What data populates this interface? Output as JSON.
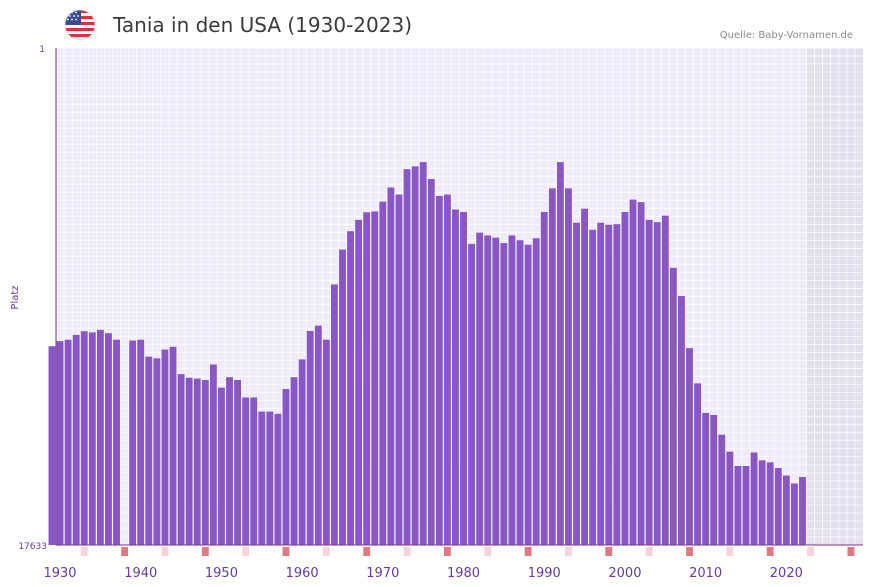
{
  "header": {
    "title": "Tania in den USA (1930-2023)",
    "source": "Quelle: Baby-Vornamen.de"
  },
  "colors": {
    "bar": "#8a55c4",
    "plot_bg": "#efebfb",
    "grid": "#ffffff",
    "future_bg": "#e2dfee",
    "axis": "#7b3a7b",
    "tick_label": "#6b3a9a",
    "marker_decade": "#e07a82",
    "marker_minor": "#f7d4da"
  },
  "chart_data": {
    "type": "bar",
    "title": "Tania in den USA (1930-2023)",
    "xlabel": "",
    "ylabel": "Platz",
    "y_reversed": true,
    "y_ticks": [
      "1",
      "17633"
    ],
    "ylim": [
      1,
      17633
    ],
    "xlim": [
      1929.5,
      2029.5
    ],
    "x_ticks": [
      1930,
      1940,
      1950,
      1960,
      1970,
      1980,
      1990,
      2000,
      2010,
      2020
    ],
    "x_tick_labels": [
      "1930",
      "1940",
      "1950",
      "1960",
      "1970",
      "1980",
      "1990",
      "2000",
      "2010",
      "2020"
    ],
    "future_shade_from_year": 2023,
    "years": [
      1929,
      1930,
      1931,
      1932,
      1933,
      1934,
      1935,
      1936,
      1937,
      1938,
      1939,
      1940,
      1941,
      1942,
      1943,
      1944,
      1945,
      1946,
      1947,
      1948,
      1949,
      1950,
      1951,
      1952,
      1953,
      1954,
      1955,
      1956,
      1957,
      1958,
      1959,
      1960,
      1961,
      1962,
      1963,
      1964,
      1965,
      1966,
      1967,
      1968,
      1969,
      1970,
      1971,
      1972,
      1973,
      1974,
      1975,
      1976,
      1977,
      1978,
      1979,
      1980,
      1981,
      1982,
      1983,
      1984,
      1985,
      1986,
      1987,
      1988,
      1989,
      1990,
      1991,
      1992,
      1993,
      1994,
      1995,
      1996,
      1997,
      1998,
      1999,
      2000,
      2001,
      2002,
      2003,
      2004,
      2005,
      2006,
      2007,
      2008,
      2009,
      2010,
      2011,
      2012,
      2013,
      2014,
      2015,
      2016,
      2017,
      2018,
      2019,
      2020,
      2021,
      2022
    ],
    "values": [
      10580,
      10400,
      10350,
      10180,
      10050,
      10090,
      10000,
      10120,
      10350,
      null,
      10380,
      10350,
      10950,
      11010,
      10700,
      10600,
      11570,
      11700,
      11730,
      11780,
      11230,
      12050,
      11680,
      11780,
      12400,
      12400,
      12900,
      12900,
      12980,
      12100,
      11680,
      11050,
      10040,
      9850,
      10350,
      8390,
      7150,
      6500,
      6100,
      5830,
      5800,
      5450,
      4950,
      5200,
      4300,
      4200,
      4050,
      4650,
      5250,
      5200,
      5730,
      5820,
      6950,
      6550,
      6650,
      6730,
      6920,
      6650,
      6820,
      6980,
      6750,
      5820,
      4980,
      4050,
      4980,
      6200,
      5700,
      6450,
      6200,
      6270,
      6250,
      5820,
      5380,
      5470,
      6100,
      6180,
      5950,
      7800,
      8800,
      10650,
      11900,
      12950,
      13020,
      13720,
      14320,
      14830,
      14830,
      14350,
      14630,
      14700,
      14900,
      15170,
      15450,
      15220
    ]
  }
}
